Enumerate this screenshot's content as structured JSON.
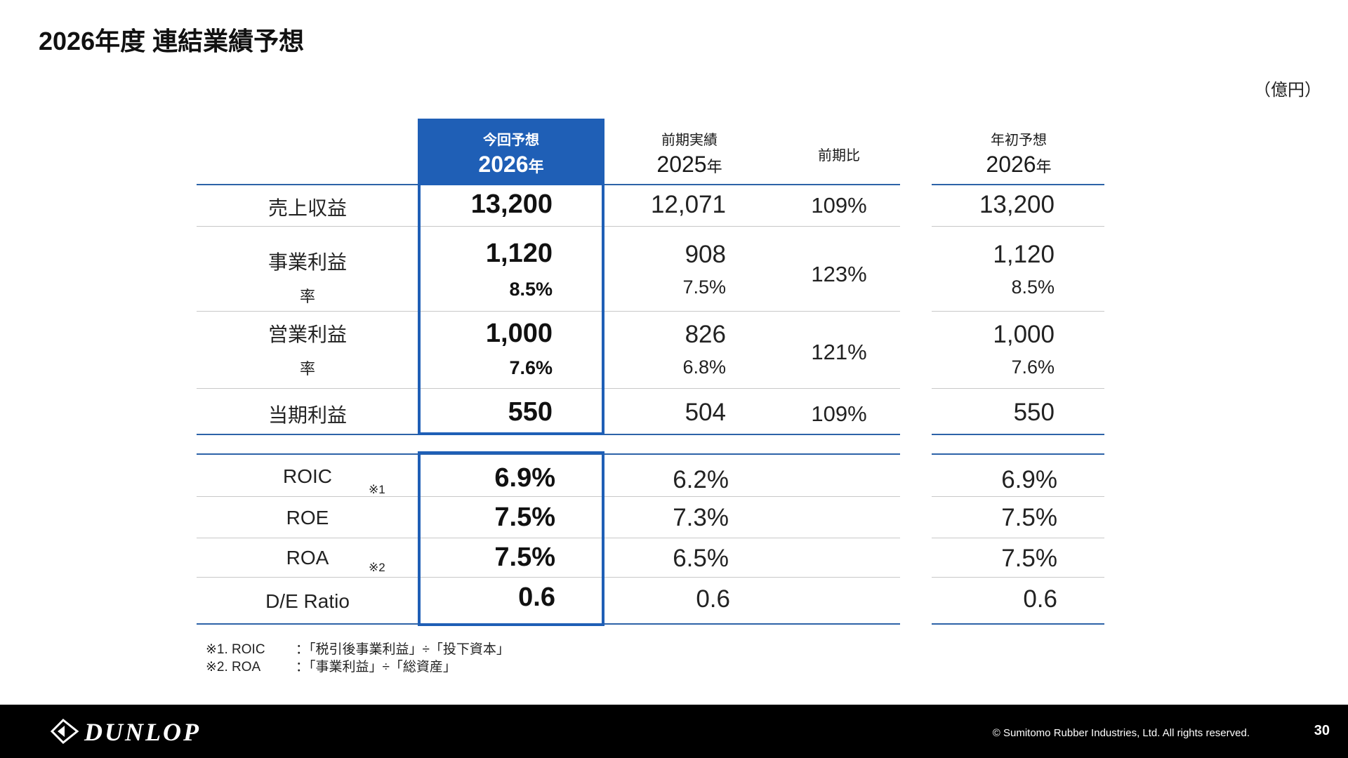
{
  "title": "2026年度 連結業績予想",
  "unit": "（億円）",
  "headers": {
    "current": {
      "label": "今回予想",
      "year": "2026",
      "suffix": "年"
    },
    "previous": {
      "label": "前期実績",
      "year": "2025",
      "suffix": "年"
    },
    "ratio": {
      "label": "前期比"
    },
    "initial": {
      "label": "年初予想",
      "year": "2026",
      "suffix": "年"
    }
  },
  "rows": {
    "revenue": {
      "label": "売上収益",
      "current": "13,200",
      "previous": "12,071",
      "ratio": "109%",
      "initial": "13,200"
    },
    "business_profit": {
      "label": "事業利益",
      "rate_label": "率",
      "current": "1,120",
      "current_rate": "8.5%",
      "previous": "908",
      "previous_rate": "7.5%",
      "ratio": "123%",
      "initial": "1,120",
      "initial_rate": "8.5%"
    },
    "operating_profit": {
      "label": "営業利益",
      "rate_label": "率",
      "current": "1,000",
      "current_rate": "7.6%",
      "previous": "826",
      "previous_rate": "6.8%",
      "ratio": "121%",
      "initial": "1,000",
      "initial_rate": "7.6%"
    },
    "net_profit": {
      "label": "当期利益",
      "current": "550",
      "previous": "504",
      "ratio": "109%",
      "initial": "550"
    },
    "roic": {
      "label": "ROIC",
      "note": "※1",
      "current": "6.9%",
      "previous": "6.2%",
      "initial": "6.9%"
    },
    "roe": {
      "label": "ROE",
      "current": "7.5%",
      "previous": "7.3%",
      "initial": "7.5%"
    },
    "roa": {
      "label": "ROA",
      "note": "※2",
      "current": "7.5%",
      "previous": "6.5%",
      "initial": "7.5%"
    },
    "de_ratio": {
      "label": "D/E Ratio",
      "current": "0.6",
      "previous": "0.6",
      "initial": "0.6"
    }
  },
  "footnotes": [
    {
      "key": "※1. ROIC",
      "text": "：「税引後事業利益」÷「投下資本」"
    },
    {
      "key": "※2. ROA",
      "text": "：「事業利益」÷「総資産」"
    }
  ],
  "footer": {
    "logo_text": "DUNLOP",
    "copyright": "© Sumitomo Rubber Industries, Ltd. All rights reserved.",
    "page_number": "30"
  },
  "colors": {
    "accent": "#1f5fb6",
    "footer_bg": "#000000"
  }
}
